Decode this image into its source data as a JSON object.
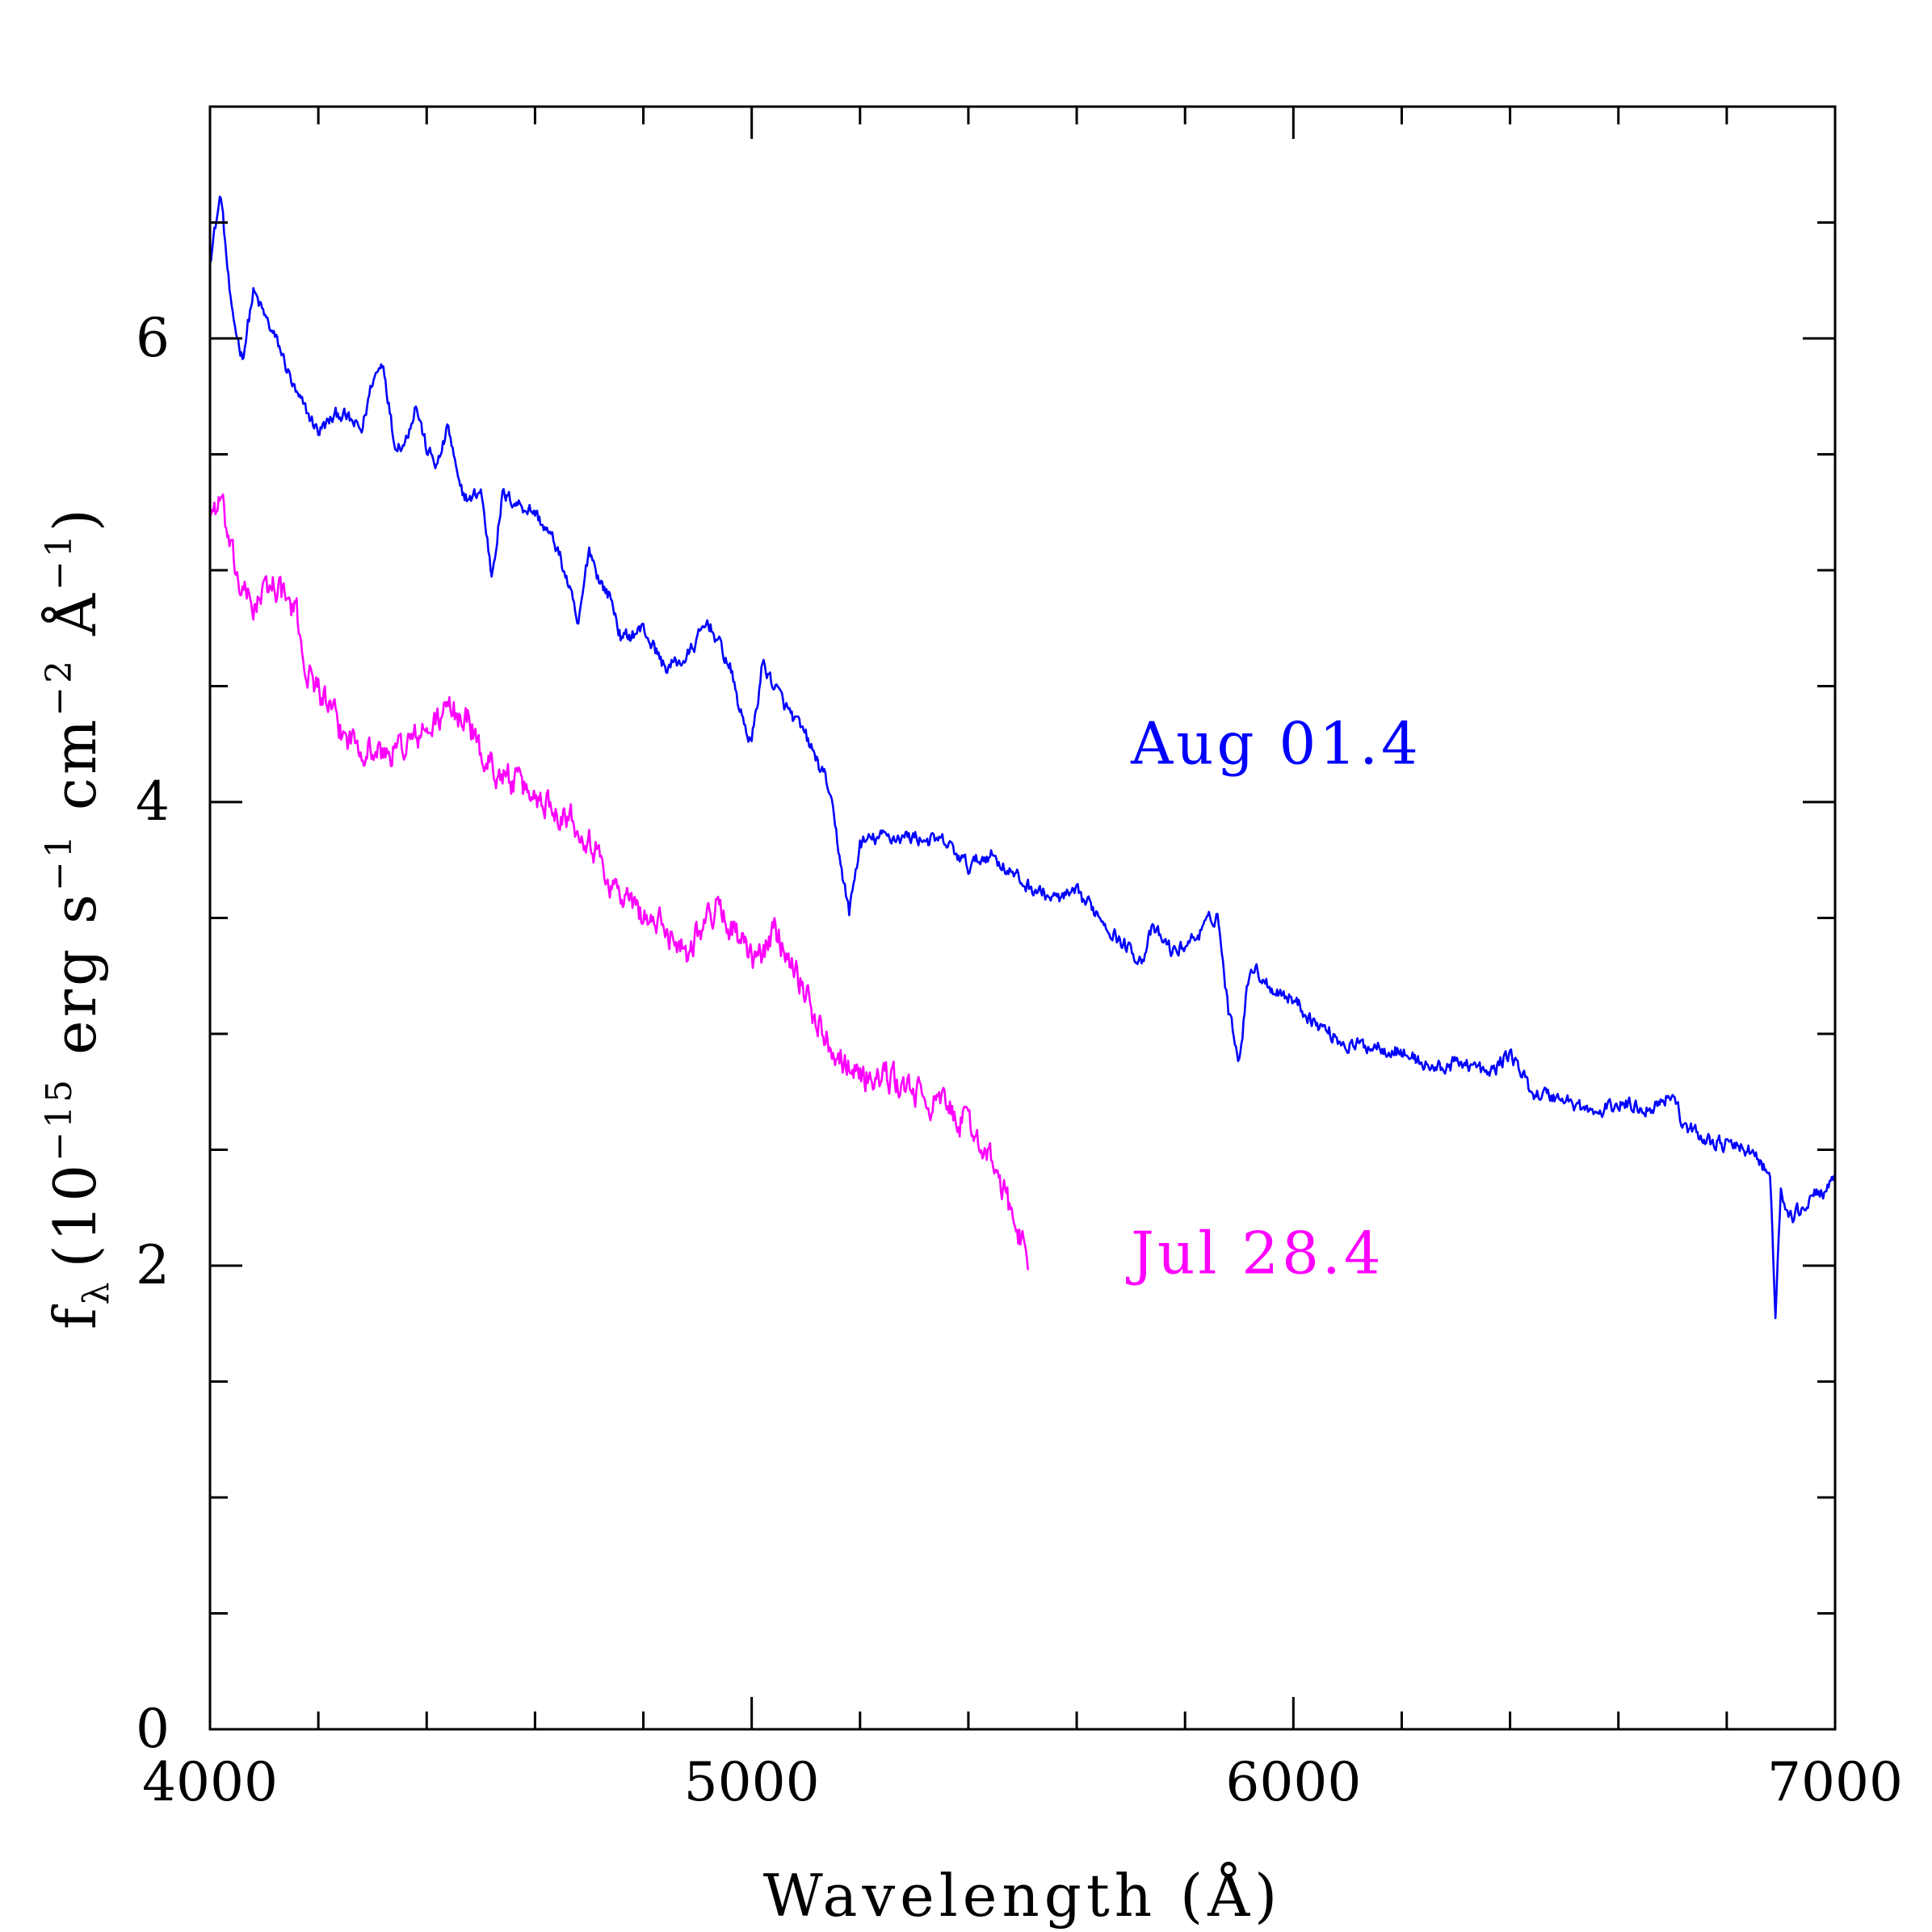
{
  "chart_data": {
    "type": "line",
    "title": "",
    "xlabel": "Wavelength (Å)",
    "ylabel": {
      "symbol": "f",
      "symbol_subscript": "λ",
      "open": "(10",
      "exp1": "−15",
      "mid1": " erg s",
      "exp2": "−1",
      "mid2": " cm",
      "exp3": "−2",
      "mid3": " Å",
      "exp4": "−1",
      "close": ")"
    },
    "xlim": [
      4000,
      7000
    ],
    "ylim": [
      0,
      7
    ],
    "x_major_ticks": [
      4000,
      5000,
      6000,
      7000
    ],
    "x_tick_labels": [
      "4000",
      "5000",
      "6000",
      "7000"
    ],
    "x_minor_step": 200,
    "y_major_ticks": [
      0,
      2,
      4,
      6
    ],
    "y_tick_labels": [
      "0",
      "2",
      "4",
      "6"
    ],
    "y_minor_step": 0.5,
    "grid": false,
    "legend": "inline labels next to curves",
    "series": [
      {
        "name": "Aug 01.4",
        "color": "#0000ff",
        "noise": 0.06,
        "x": [
          4000,
          4020,
          4040,
          4060,
          4080,
          4100,
          4130,
          4160,
          4200,
          4240,
          4280,
          4300,
          4320,
          4340,
          4360,
          4380,
          4400,
          4420,
          4440,
          4460,
          4480,
          4500,
          4520,
          4540,
          4560,
          4600,
          4640,
          4660,
          4680,
          4700,
          4720,
          4740,
          4760,
          4800,
          4840,
          4880,
          4920,
          4960,
          4980,
          5000,
          5020,
          5060,
          5100,
          5140,
          5160,
          5180,
          5200,
          5240,
          5300,
          5360,
          5400,
          5440,
          5500,
          5560,
          5600,
          5640,
          5680,
          5720,
          5740,
          5780,
          5820,
          5860,
          5880,
          5900,
          5920,
          5960,
          6000,
          6040,
          6100,
          6160,
          6200,
          6260,
          6320,
          6360,
          6400,
          6440,
          6500,
          6560,
          6600,
          6660,
          6700,
          6720,
          6760,
          6800,
          6840,
          6860,
          6880,
          6890,
          6900,
          6920,
          6960,
          7000
        ],
        "y": [
          6.35,
          6.62,
          6.1,
          5.92,
          6.2,
          6.1,
          5.95,
          5.75,
          5.6,
          5.68,
          5.6,
          5.82,
          5.9,
          5.55,
          5.55,
          5.72,
          5.52,
          5.45,
          5.62,
          5.35,
          5.3,
          5.35,
          4.98,
          5.32,
          5.3,
          5.25,
          5.1,
          4.95,
          4.75,
          5.1,
          4.95,
          4.88,
          4.7,
          4.75,
          4.58,
          4.62,
          4.78,
          4.58,
          4.38,
          4.25,
          4.6,
          4.42,
          4.28,
          4.08,
          3.8,
          3.52,
          3.82,
          3.85,
          3.85,
          3.82,
          3.72,
          3.78,
          3.65,
          3.58,
          3.6,
          3.52,
          3.4,
          3.32,
          3.45,
          3.35,
          3.42,
          3.52,
          3.1,
          2.9,
          3.3,
          3.2,
          3.15,
          3.05,
          2.95,
          2.95,
          2.92,
          2.85,
          2.88,
          2.82,
          2.92,
          2.75,
          2.72,
          2.65,
          2.7,
          2.68,
          2.75,
          2.6,
          2.55,
          2.52,
          2.5,
          2.45,
          2.38,
          1.8,
          2.3,
          2.2,
          2.3,
          2.35
        ]
      },
      {
        "name": "Jul 28.4",
        "color": "#ff00ff",
        "noise": 0.12,
        "x": [
          4000,
          4020,
          4040,
          4060,
          4080,
          4120,
          4160,
          4180,
          4200,
          4240,
          4280,
          4320,
          4360,
          4400,
          4440,
          4480,
          4500,
          4540,
          4580,
          4620,
          4660,
          4700,
          4720,
          4740,
          4780,
          4820,
          4860,
          4880,
          4900,
          4940,
          4980,
          5000,
          5020,
          5040,
          5060,
          5080,
          5120,
          5160,
          5200,
          5260,
          5320,
          5360,
          5400,
          5420,
          5440,
          5460,
          5480,
          5500,
          5510
        ],
        "y": [
          5.25,
          5.3,
          5.05,
          4.9,
          4.85,
          4.95,
          4.8,
          4.55,
          4.5,
          4.3,
          4.25,
          4.2,
          4.25,
          4.3,
          4.4,
          4.35,
          4.2,
          4.12,
          4.05,
          4.0,
          3.95,
          3.85,
          3.75,
          3.65,
          3.55,
          3.48,
          3.42,
          3.35,
          3.45,
          3.55,
          3.4,
          3.3,
          3.35,
          3.45,
          3.38,
          3.3,
          3.05,
          2.92,
          2.82,
          2.8,
          2.72,
          2.68,
          2.6,
          2.55,
          2.45,
          2.35,
          2.22,
          2.1,
          2.05
        ]
      }
    ],
    "annotations": [
      {
        "text": "Aug 01.4",
        "x": 5700,
        "y": 4.25,
        "color": "#0000ff"
      },
      {
        "text": "Jul 28.4",
        "x": 5700,
        "y": 2.05,
        "color": "#ff00ff"
      }
    ]
  }
}
